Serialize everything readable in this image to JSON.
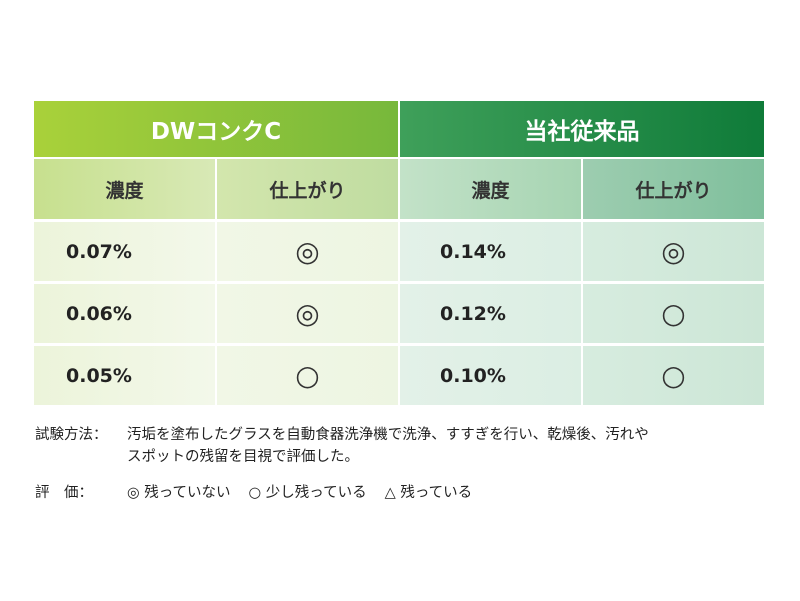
{
  "table": {
    "groups": [
      "DWコンクC",
      "当社従来品"
    ],
    "subheaders": [
      "濃度",
      "仕上がり",
      "濃度",
      "仕上がり"
    ],
    "rows": [
      {
        "conc_a": "0.07%",
        "mark_a": "◎",
        "conc_b": "0.14%",
        "mark_b": "◎"
      },
      {
        "conc_a": "0.06%",
        "mark_a": "◎",
        "conc_b": "0.12%",
        "mark_b": "○"
      },
      {
        "conc_a": "0.05%",
        "mark_a": "○",
        "conc_b": "0.10%",
        "mark_b": "○"
      }
    ]
  },
  "notes": {
    "method_label": "試験方法：",
    "method_line1": "汚垢を塗布したグラスを自動食器洗浄機で洗浄、すすぎを行い、乾燥後、汚れや",
    "method_line2": "スポットの残留を目視で評価した。",
    "eval_label": "評　価：",
    "eval_items": [
      "◎ 残っていない",
      "○ 少し残っている",
      "△ 残っている"
    ]
  }
}
